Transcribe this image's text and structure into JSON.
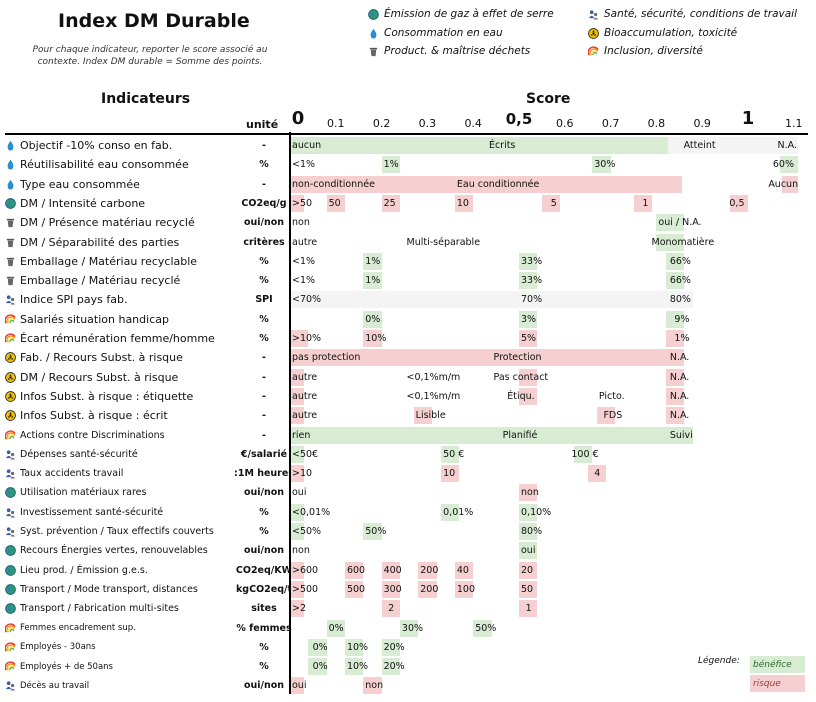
{
  "title": "Index DM Durable",
  "subtitle": "Pour chaque indicateur, reporter le score associé au contexte. Index DM durable = Somme des points.",
  "legend": [
    {
      "icon": "globe-icon",
      "label": "Émission de gaz à effet de serre"
    },
    {
      "icon": "drop-icon",
      "label": "Consommation en eau"
    },
    {
      "icon": "bin-icon",
      "label": "Product. & maîtrise déchets"
    },
    {
      "icon": "people-icon",
      "label": "Santé, sécurité, conditions de travail"
    },
    {
      "icon": "hazard-icon",
      "label": "Bioaccumulation, toxicité"
    },
    {
      "icon": "rainbow-icon",
      "label": "Inclusion, diversité"
    }
  ],
  "headers": {
    "indicators": "Indicateurs",
    "score": "Score",
    "unit": "unité"
  },
  "scale": [
    "0",
    "0.1",
    "0.2",
    "0.3",
    "0.4",
    "0,5",
    "0.6",
    "0.7",
    "0.8",
    "0.9",
    "1",
    "1.1"
  ],
  "colors": {
    "benefit": "#d7ecd3",
    "risk": "#f6cfd0"
  },
  "rows": [
    {
      "icon": "drop-icon",
      "label": "Objectif -10% conso en fab.",
      "unit": "-",
      "bars": [
        [
          0,
          0.825,
          "b"
        ],
        [
          0.825,
          1.11,
          "p"
        ]
      ],
      "cells": [
        [
          0,
          "aucun"
        ],
        [
          0.43,
          "Écrits"
        ],
        [
          0.855,
          "Atteint"
        ],
        [
          1.06,
          "N.A."
        ]
      ]
    },
    {
      "icon": "drop-icon",
      "label": "Réutilisabilité eau consommée",
      "unit": "%",
      "bars": [
        [
          0.2,
          0.24,
          "b"
        ],
        [
          0.66,
          0.7,
          "b"
        ],
        [
          1.07,
          1.11,
          "b"
        ]
      ],
      "cells": [
        [
          0,
          "<1%"
        ],
        [
          0.2,
          "1%"
        ],
        [
          0.66,
          "30%"
        ],
        [
          1.05,
          "60%"
        ]
      ]
    },
    {
      "icon": "drop-icon",
      "label": "Type eau consommée",
      "unit": "-",
      "bars": [
        [
          0,
          0.855,
          "r"
        ],
        [
          1.075,
          1.11,
          "r"
        ]
      ],
      "cells": [
        [
          0,
          "non-conditionnée"
        ],
        [
          0.36,
          "Eau conditionnée"
        ],
        [
          1.04,
          "Aucun"
        ]
      ]
    },
    {
      "icon": "globe-icon",
      "label": "DM / Intensité carbone",
      "unit": "CO2eq/g",
      "bars": [
        [
          0,
          0.03,
          "r"
        ],
        [
          0.08,
          0.12,
          "r"
        ],
        [
          0.2,
          0.24,
          "r"
        ],
        [
          0.36,
          0.4,
          "r"
        ],
        [
          0.55,
          0.59,
          "r"
        ],
        [
          0.75,
          0.79,
          "r"
        ],
        [
          0.96,
          1.0,
          "r"
        ]
      ],
      "cells": [
        [
          0,
          ">50"
        ],
        [
          0.08,
          "50"
        ],
        [
          0.2,
          "25"
        ],
        [
          0.36,
          "10"
        ],
        [
          0.565,
          "5"
        ],
        [
          0.765,
          "1"
        ],
        [
          0.955,
          "0,5"
        ]
      ]
    },
    {
      "icon": "bin-icon",
      "label": "DM / Présence matériau recyclé",
      "unit": "oui/non",
      "bars": [
        [
          0.8,
          0.86,
          "b"
        ]
      ],
      "cells": [
        [
          0,
          "non"
        ],
        [
          0.8,
          "oui / N.A."
        ]
      ]
    },
    {
      "icon": "bin-icon",
      "label": "DM / Séparabilité des parties",
      "unit": "critères",
      "bars": [
        [
          0.8,
          0.86,
          "b"
        ]
      ],
      "cells": [
        [
          0,
          "autre"
        ],
        [
          0.25,
          "Multi-séparable"
        ],
        [
          0.785,
          "Monomatière"
        ]
      ]
    },
    {
      "icon": "bin-icon",
      "label": "Emballage / Matériau recyclable",
      "unit": "%",
      "bars": [
        [
          0.16,
          0.2,
          "b"
        ],
        [
          0.5,
          0.54,
          "b"
        ],
        [
          0.82,
          0.86,
          "b"
        ]
      ],
      "cells": [
        [
          0,
          "<1%"
        ],
        [
          0.16,
          "1%"
        ],
        [
          0.5,
          "33%"
        ],
        [
          0.825,
          "66%"
        ]
      ]
    },
    {
      "icon": "bin-icon",
      "label": "Emballage / Matériau recyclé",
      "unit": "%",
      "bars": [
        [
          0.16,
          0.2,
          "b"
        ],
        [
          0.5,
          0.54,
          "b"
        ],
        [
          0.82,
          0.86,
          "b"
        ]
      ],
      "cells": [
        [
          0,
          "<1%"
        ],
        [
          0.16,
          "1%"
        ],
        [
          0.5,
          "33%"
        ],
        [
          0.825,
          "66%"
        ]
      ]
    },
    {
      "icon": "people-icon",
      "label": "Indice SPI pays fab.",
      "unit": "SPI",
      "bars": [
        [
          0,
          0.88,
          "p"
        ]
      ],
      "cells": [
        [
          0,
          "<70%"
        ],
        [
          0.5,
          "70%"
        ],
        [
          0.825,
          "80%"
        ]
      ]
    },
    {
      "icon": "rainbow-icon",
      "label": "Salariés situation handicap",
      "unit": "%",
      "bars": [
        [
          0.16,
          0.2,
          "b"
        ],
        [
          0.5,
          0.54,
          "b"
        ],
        [
          0.82,
          0.86,
          "b"
        ]
      ],
      "cells": [
        [
          0.16,
          "0%"
        ],
        [
          0.5,
          "3%"
        ],
        [
          0.835,
          "9%"
        ]
      ]
    },
    {
      "icon": "rainbow-icon",
      "label": "Écart rémunération femme/homme",
      "unit": "%",
      "bars": [
        [
          0,
          0.04,
          "r"
        ],
        [
          0.16,
          0.2,
          "r"
        ],
        [
          0.5,
          0.54,
          "r"
        ],
        [
          0.82,
          0.86,
          "r"
        ]
      ],
      "cells": [
        [
          0,
          ">10%"
        ],
        [
          0.16,
          "10%"
        ],
        [
          0.5,
          "5%"
        ],
        [
          0.835,
          "1%"
        ]
      ]
    },
    {
      "icon": "hazard-icon",
      "label": "Fab. / Recours Subst. à risque",
      "unit": "-",
      "bars": [
        [
          0,
          0.86,
          "r"
        ]
      ],
      "cells": [
        [
          0,
          "pas protection"
        ],
        [
          0.44,
          "Protection"
        ],
        [
          0.825,
          "N.A."
        ]
      ]
    },
    {
      "icon": "hazard-icon",
      "label": "DM / Recours Subst. à risque",
      "unit": "-",
      "bars": [
        [
          0,
          0.03,
          "r"
        ],
        [
          0.5,
          0.54,
          "r"
        ],
        [
          0.82,
          0.86,
          "r"
        ]
      ],
      "cells": [
        [
          0,
          "autre"
        ],
        [
          0.25,
          "<0,1%m/m"
        ],
        [
          0.44,
          "Pas contact"
        ],
        [
          0.825,
          "N.A."
        ]
      ]
    },
    {
      "icon": "hazard-icon",
      "label": "Infos Subst. à risque : étiquette",
      "unit": "-",
      "bars": [
        [
          0,
          0.03,
          "r"
        ],
        [
          0.5,
          0.54,
          "r"
        ],
        [
          0.82,
          0.86,
          "r"
        ]
      ],
      "cells": [
        [
          0,
          "autre"
        ],
        [
          0.25,
          "<0,1%m/m"
        ],
        [
          0.47,
          "Étiqu."
        ],
        [
          0.67,
          "Picto."
        ],
        [
          0.825,
          "N.A."
        ]
      ]
    },
    {
      "icon": "hazard-icon",
      "label": "Infos Subst. à risque : écrit",
      "unit": "-",
      "bars": [
        [
          0,
          0.03,
          "r"
        ],
        [
          0.27,
          0.31,
          "r"
        ],
        [
          0.67,
          0.71,
          "r"
        ],
        [
          0.82,
          0.86,
          "r"
        ]
      ],
      "cells": [
        [
          0,
          "autre"
        ],
        [
          0.27,
          "Lisible"
        ],
        [
          0.68,
          "FDS"
        ],
        [
          0.825,
          "N.A."
        ]
      ]
    },
    {
      "icon": "rainbow-icon",
      "label": "Actions contre Discriminations",
      "unit": "-",
      "bars": [
        [
          0,
          0.88,
          "b"
        ]
      ],
      "cells": [
        [
          0,
          "rien"
        ],
        [
          0.46,
          "Planifié"
        ],
        [
          0.825,
          "Suivi"
        ]
      ]
    },
    {
      "icon": "people-icon",
      "label": "Dépenses santé-sécurité",
      "unit": "€/salarié",
      "bars": [
        [
          0,
          0.03,
          "b"
        ],
        [
          0.33,
          0.37,
          "b"
        ],
        [
          0.62,
          0.66,
          "b"
        ]
      ],
      "cells": [
        [
          0,
          "<50€"
        ],
        [
          0.33,
          "50 €"
        ],
        [
          0.61,
          "100 €"
        ]
      ]
    },
    {
      "icon": "people-icon",
      "label": "Taux accidents travail",
      "unit": ":1M heures",
      "bars": [
        [
          0,
          0.03,
          "r"
        ],
        [
          0.33,
          0.37,
          "r"
        ],
        [
          0.65,
          0.69,
          "r"
        ]
      ],
      "cells": [
        [
          0,
          ">10"
        ],
        [
          0.33,
          "10"
        ],
        [
          0.66,
          "4"
        ]
      ]
    },
    {
      "icon": "globe-icon",
      "label": "Utilisation matériaux rares",
      "unit": "oui/non",
      "bars": [
        [
          0.5,
          0.54,
          "r"
        ]
      ],
      "cells": [
        [
          0,
          "oui"
        ],
        [
          0.5,
          "non"
        ]
      ]
    },
    {
      "icon": "people-icon",
      "label": "Investissement santé-sécurité",
      "unit": "%",
      "bars": [
        [
          0,
          0.03,
          "b"
        ],
        [
          0.33,
          0.37,
          "b"
        ],
        [
          0.5,
          0.54,
          "b"
        ]
      ],
      "cells": [
        [
          0,
          "<0,01%"
        ],
        [
          0.33,
          "0,01%"
        ],
        [
          0.5,
          "0,10%"
        ]
      ]
    },
    {
      "icon": "people-icon",
      "label": "Syst. prévention / Taux effectifs couverts",
      "unit": "%",
      "bars": [
        [
          0,
          0.03,
          "b"
        ],
        [
          0.16,
          0.2,
          "b"
        ],
        [
          0.5,
          0.54,
          "b"
        ]
      ],
      "cells": [
        [
          0,
          "<50%"
        ],
        [
          0.16,
          "50%"
        ],
        [
          0.5,
          "80%"
        ]
      ]
    },
    {
      "icon": "globe-icon",
      "label": "Recours Énergies vertes, renouvelables",
      "unit": "oui/non",
      "bars": [
        [
          0.5,
          0.54,
          "b"
        ]
      ],
      "cells": [
        [
          0,
          "non"
        ],
        [
          0.5,
          "oui"
        ]
      ]
    },
    {
      "icon": "globe-icon",
      "label": "Lieu prod. / Émission g.e.s.",
      "unit": "CO2eq/KW",
      "bars": [
        [
          0,
          0.03,
          "r"
        ],
        [
          0.12,
          0.16,
          "r"
        ],
        [
          0.2,
          0.24,
          "r"
        ],
        [
          0.28,
          0.32,
          "r"
        ],
        [
          0.36,
          0.4,
          "r"
        ],
        [
          0.5,
          0.54,
          "r"
        ]
      ],
      "cells": [
        [
          0,
          ">600"
        ],
        [
          0.12,
          "600"
        ],
        [
          0.2,
          "400"
        ],
        [
          0.28,
          "200"
        ],
        [
          0.36,
          "40"
        ],
        [
          0.5,
          "20"
        ]
      ]
    },
    {
      "icon": "globe-icon",
      "label": "Transport / Mode transport, distances",
      "unit": "kgCO2eq/t",
      "bars": [
        [
          0,
          0.03,
          "r"
        ],
        [
          0.12,
          0.16,
          "r"
        ],
        [
          0.2,
          0.24,
          "r"
        ],
        [
          0.28,
          0.32,
          "r"
        ],
        [
          0.36,
          0.4,
          "r"
        ],
        [
          0.5,
          0.54,
          "r"
        ]
      ],
      "cells": [
        [
          0,
          ">500"
        ],
        [
          0.12,
          "500"
        ],
        [
          0.2,
          "300"
        ],
        [
          0.28,
          "200"
        ],
        [
          0.36,
          "100"
        ],
        [
          0.5,
          "50"
        ]
      ]
    },
    {
      "icon": "globe-icon",
      "label": "Transport / Fabrication multi-sites",
      "unit": "sites",
      "bars": [
        [
          0,
          0.03,
          "r"
        ],
        [
          0.2,
          0.24,
          "r"
        ],
        [
          0.5,
          0.54,
          "r"
        ]
      ],
      "cells": [
        [
          0,
          ">2"
        ],
        [
          0.21,
          "2"
        ],
        [
          0.51,
          "1"
        ]
      ]
    },
    {
      "icon": "rainbow-icon",
      "label": "Femmes encadrement sup.",
      "unit": "% femmes",
      "bars": [
        [
          0.08,
          0.12,
          "b"
        ],
        [
          0.24,
          0.28,
          "b"
        ],
        [
          0.4,
          0.44,
          "b"
        ]
      ],
      "cells": [
        [
          0.08,
          "0%"
        ],
        [
          0.24,
          "30%"
        ],
        [
          0.4,
          "50%"
        ]
      ]
    },
    {
      "icon": "rainbow-icon",
      "label": "Employés - 30ans",
      "unit": "%",
      "bars": [
        [
          0.04,
          0.08,
          "b"
        ],
        [
          0.12,
          0.16,
          "b"
        ],
        [
          0.2,
          0.24,
          "b"
        ]
      ],
      "cells": [
        [
          0.045,
          "0%"
        ],
        [
          0.12,
          "10%"
        ],
        [
          0.2,
          "20%"
        ]
      ]
    },
    {
      "icon": "rainbow-icon",
      "label": "Employés + de 50ans",
      "unit": "%",
      "bars": [
        [
          0.04,
          0.08,
          "b"
        ],
        [
          0.12,
          0.16,
          "b"
        ],
        [
          0.2,
          0.24,
          "b"
        ]
      ],
      "cells": [
        [
          0.045,
          "0%"
        ],
        [
          0.12,
          "10%"
        ],
        [
          0.2,
          "20%"
        ]
      ]
    },
    {
      "icon": "people-icon",
      "label": "Décès au travail",
      "unit": "oui/non",
      "bars": [
        [
          0,
          0.03,
          "r"
        ],
        [
          0.16,
          0.2,
          "r"
        ]
      ],
      "cells": [
        [
          0,
          "oui"
        ],
        [
          0.16,
          "non"
        ]
      ]
    }
  ],
  "key": {
    "title": "Légende:",
    "benefit": "bénéfice",
    "risk": "risque"
  }
}
